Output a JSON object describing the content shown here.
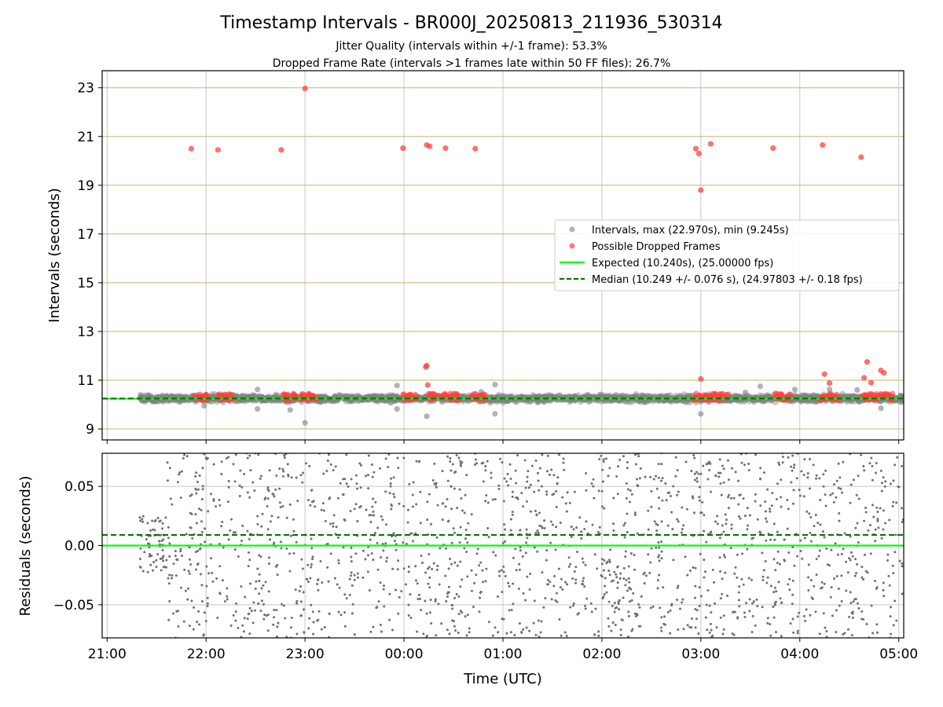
{
  "chart_data": [
    {
      "type": "scatter",
      "panel": "intervals",
      "title": "Timestamp Intervals - BR000J_20250813_211936_530314",
      "subtitle_lines": [
        "Jitter Quality (intervals within +/-1 frame): 53.3%",
        "Dropped Frame Rate (intervals >1 frames late within 50 FF files): 26.7%"
      ],
      "xlabel": "",
      "ylabel": "Intervals (seconds)",
      "x_unit": "hours since 21:00 UTC (13 Aug 2025)",
      "xlim": [
        -0.05,
        8.05
      ],
      "ylim": [
        8.55,
        23.7
      ],
      "yticks": [
        "9",
        "11",
        "13",
        "15",
        "17",
        "19",
        "21",
        "23"
      ],
      "ytick_values": [
        9,
        11,
        13,
        15,
        17,
        19,
        21,
        23
      ],
      "grid": {
        "x": true,
        "y": true,
        "y_color": "#c8b46e"
      },
      "legend": {
        "placement": "center-right",
        "entries": [
          {
            "label": "Intervals, max (22.970s), min (9.245s)",
            "marker": "dot",
            "color": "#808080"
          },
          {
            "label": "Possible Dropped Frames",
            "marker": "dot",
            "color": "#ff4040"
          },
          {
            "label": "Expected (10.240s), (25.00000 fps)",
            "marker": "solid",
            "color": "#00ff00"
          },
          {
            "label": "Median (10.249 +/- 0.076 s), (24.97803 +/- 0.18 fps)",
            "marker": "dashed",
            "color": "#007800"
          }
        ]
      },
      "series": [
        {
          "name": "Intervals, max (22.970s), min (9.245s)",
          "color": "#808080",
          "note": "dense band of ~2800 points around 10.25 s spanning x 0.33–8.05; representative outliers below",
          "band": {
            "x_start": 0.33,
            "x_end": 8.05,
            "center": 10.25,
            "spread": 0.12
          },
          "points": [
            [
              0.98,
              9.95
            ],
            [
              1.52,
              10.62
            ],
            [
              1.52,
              9.82
            ],
            [
              1.85,
              9.78
            ],
            [
              2.0,
              9.25
            ],
            [
              2.93,
              10.78
            ],
            [
              2.93,
              9.82
            ],
            [
              3.23,
              9.52
            ],
            [
              3.78,
              10.52
            ],
            [
              3.92,
              10.82
            ],
            [
              3.92,
              9.62
            ],
            [
              6.0,
              9.62
            ],
            [
              6.45,
              10.5
            ],
            [
              6.6,
              10.75
            ],
            [
              6.95,
              10.62
            ],
            [
              7.3,
              10.62
            ],
            [
              7.58,
              10.6
            ],
            [
              7.82,
              9.85
            ]
          ]
        },
        {
          "name": "Possible Dropped Frames",
          "color": "#ff4040",
          "points": [
            [
              0.85,
              20.5
            ],
            [
              1.12,
              20.45
            ],
            [
              1.76,
              20.45
            ],
            [
              2.0,
              22.97
            ],
            [
              2.99,
              20.52
            ],
            [
              3.23,
              20.65
            ],
            [
              3.26,
              20.6
            ],
            [
              3.42,
              20.52
            ],
            [
              3.72,
              20.5
            ],
            [
              5.95,
              20.5
            ],
            [
              5.98,
              20.3
            ],
            [
              6.0,
              18.8
            ],
            [
              6.1,
              20.7
            ],
            [
              6.73,
              20.52
            ],
            [
              7.23,
              20.65
            ],
            [
              7.62,
              20.15
            ],
            [
              3.23,
              11.6
            ],
            [
              3.22,
              11.55
            ],
            [
              3.24,
              10.8
            ],
            [
              6.0,
              11.05
            ],
            [
              7.25,
              11.25
            ],
            [
              7.3,
              10.88
            ],
            [
              7.68,
              11.75
            ],
            [
              7.65,
              11.1
            ],
            [
              7.82,
              11.4
            ],
            [
              7.85,
              11.3
            ],
            [
              7.72,
              10.9
            ]
          ],
          "clusters": [
            [
              0.88,
              1.02
            ],
            [
              1.12,
              1.28
            ],
            [
              1.78,
              1.92
            ],
            [
              1.96,
              2.12
            ],
            [
              2.98,
              3.14
            ],
            [
              3.24,
              3.55
            ],
            [
              3.68,
              3.83
            ],
            [
              5.92,
              6.28
            ],
            [
              6.75,
              6.92
            ],
            [
              7.2,
              7.42
            ],
            [
              7.62,
              7.94
            ]
          ],
          "cluster_level": 10.3
        }
      ],
      "lines": [
        {
          "name": "Expected (10.240s), (25.00000 fps)",
          "y": 10.24,
          "color": "#00ff00",
          "style": "solid"
        },
        {
          "name": "Median (10.249 +/- 0.076 s), (24.97803 +/- 0.18 fps)",
          "y": 10.249,
          "color": "#007800",
          "style": "dashed"
        }
      ]
    },
    {
      "type": "scatter",
      "panel": "residuals",
      "xlabel": "Time (UTC)",
      "ylabel": "Residuals (seconds)",
      "x_unit": "hours since 21:00 UTC (13 Aug 2025)",
      "xlim": [
        -0.05,
        8.05
      ],
      "ylim": [
        -0.078,
        0.078
      ],
      "xticks": [
        "21:00",
        "22:00",
        "23:00",
        "00:00",
        "01:00",
        "02:00",
        "03:00",
        "04:00",
        "05:00"
      ],
      "xtick_values": [
        0,
        1,
        2,
        3,
        4,
        5,
        6,
        7,
        8
      ],
      "yticks": [
        "−0.05",
        "0.00",
        "0.05"
      ],
      "ytick_values": [
        -0.05,
        0,
        0.05
      ],
      "grid": {
        "x": true,
        "y": true
      },
      "series": [
        {
          "name": "",
          "color": "#707070",
          "note": "~1800 residual points scattered uniformly in x 0.33–8.05; |residual| <= 0.025 for x < 0.6, then spanning full +/-0.078"
        }
      ],
      "lines": [
        {
          "name": "",
          "y": 0.0,
          "color": "#00ff00",
          "style": "solid"
        },
        {
          "name": "",
          "y": 0.009,
          "color": "#007800",
          "style": "dashed"
        }
      ]
    }
  ]
}
